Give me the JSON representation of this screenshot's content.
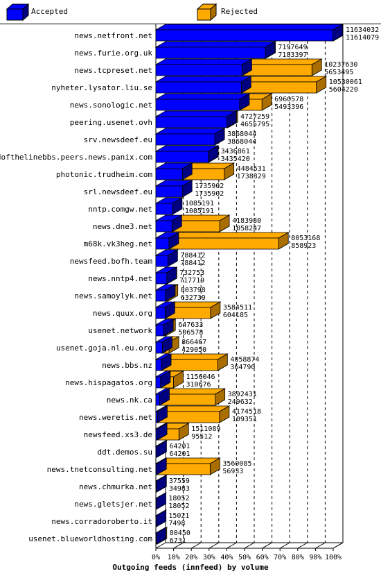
{
  "chart_data": {
    "type": "bar",
    "orientation": "horizontal",
    "stacking": "overlap",
    "xlabel": "Outgoing feeds (innfeed) by volume",
    "x_ticks": [
      "0%",
      "10%",
      "20%",
      "30%",
      "40%",
      "50%",
      "60%",
      "70%",
      "80%",
      "90%",
      "100%"
    ],
    "xlim": [
      0,
      11634032
    ],
    "grid": true,
    "legend_position": "top",
    "series": [
      {
        "name": "Accepted",
        "color": "#0000ff",
        "side_color": "#000080"
      },
      {
        "name": "Rejected",
        "color": "#ffaa00",
        "side_color": "#aa6e00"
      }
    ],
    "categories": [
      "news.netfront.net",
      "news.furie.org.uk",
      "news.tcpreset.net",
      "nyheter.lysator.liu.se",
      "news.sonologic.net",
      "peering.usenet.ovh",
      "srv.newsdeef.eu",
      "endofthelinebbs.peers.news.panix.com",
      "photonic.trudheim.com",
      "srl.newsdeef.eu",
      "nntp.comgw.net",
      "news.dne3.net",
      "m68k.vk3heg.net",
      "newsfeed.bofh.team",
      "news.nntp4.net",
      "news.samoylyk.net",
      "news.quux.org",
      "usenet.network",
      "usenet.goja.nl.eu.org",
      "news.bbs.nz",
      "news.hispagatos.org",
      "news.nk.ca",
      "news.weretis.net",
      "newsfeed.xs3.de",
      "ddt.demos.su",
      "news.tnetconsulting.net",
      "news.chmurka.net",
      "news.gletsjer.net",
      "news.corradoroberto.it",
      "usenet.blueworldhosting.com"
    ],
    "offered": [
      "11634032",
      "7197649",
      "10237630",
      "10530061",
      "6960578",
      "4727259",
      "3868044",
      "3436861",
      "4484531",
      "1735902",
      "1085191",
      "4183980",
      "8053168",
      "788412",
      "732753",
      "803798",
      "3584511",
      "647633",
      "866467",
      "4058874",
      "1156046",
      "3892431",
      "4174518",
      "1511089",
      "64201",
      "3560085",
      "37559",
      "18052",
      "15021",
      "80450"
    ],
    "accepted": [
      "11614079",
      "7183397",
      "5653495",
      "5604220",
      "5493396",
      "4655795",
      "3868044",
      "3435420",
      "1738329",
      "1735902",
      "1085191",
      "1058247",
      "858923",
      "788412",
      "717719",
      "632739",
      "604185",
      "506578",
      "429050",
      "364790",
      "310676",
      "249632",
      "109351",
      "95512",
      "64201",
      "56933",
      "34983",
      "18052",
      "7498",
      "6731"
    ]
  }
}
